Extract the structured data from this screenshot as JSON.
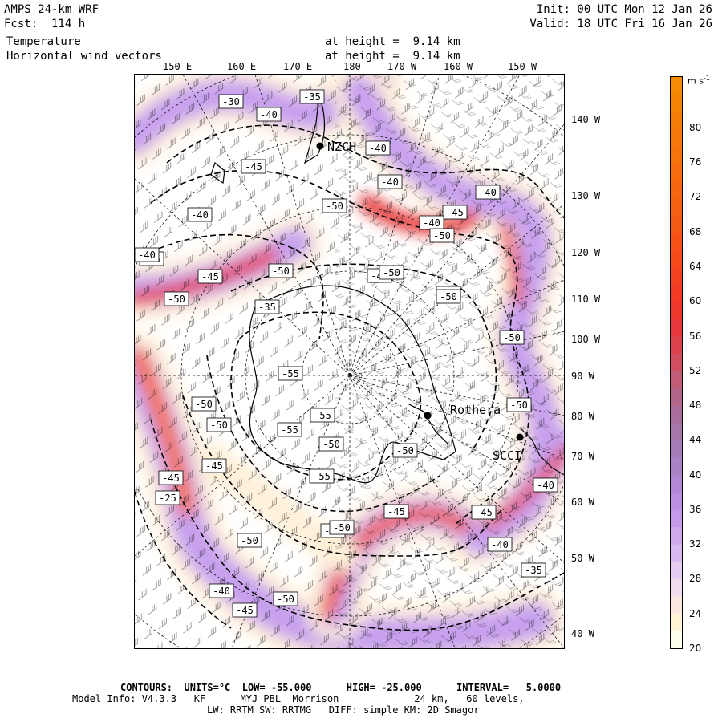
{
  "header": {
    "model": "AMPS 24-km WRF",
    "forecast": "Fcst:  114 h",
    "init": "Init: 00 UTC Mon 12 Jan 26",
    "valid": "Valid: 18 UTC Fri 16 Jan 26",
    "variable1": "Temperature",
    "variable2": "Horizontal wind vectors",
    "height1": "at height =  9.14 km",
    "height2": "at height =  9.14 km"
  },
  "longitude_top": [
    "150 E",
    "160 E",
    "170 E",
    "180",
    "170 W",
    "160 W",
    "150 W"
  ],
  "longitude_right": [
    "140 W",
    "130 W",
    "120 W",
    "110 W",
    "100 W",
    "90 W",
    "80 W",
    "70 W",
    "60 W",
    "50 W",
    "40 W"
  ],
  "stations": [
    {
      "name": "NZCH",
      "label": "NZCH"
    },
    {
      "name": "Rothera",
      "label": "Rothera"
    },
    {
      "name": "SCCI",
      "label": "SCCI"
    }
  ],
  "contour_labels": [
    "-30",
    "-40",
    "-35",
    "-40",
    "-45",
    "-40",
    "-40",
    "-50",
    "-45",
    "-40",
    "-40",
    "-45",
    "-50",
    "-45",
    "-50",
    "-40",
    "-45",
    "-50",
    "-50",
    "-50",
    "-55",
    "-50",
    "-50",
    "-55",
    "-55",
    "-50",
    "-45",
    "-50",
    "-50",
    "-35",
    "-25",
    "-45",
    "-50",
    "-55",
    "-50",
    "-45",
    "-50",
    "-40",
    "-35",
    "-50",
    "-40",
    "-45",
    "-50",
    "-45",
    "-40",
    "-50"
  ],
  "colorbar": {
    "unit": "m s",
    "unit_sup": "-1",
    "ticks": [
      80,
      76,
      72,
      68,
      64,
      60,
      56,
      52,
      48,
      44,
      40,
      36,
      32,
      28,
      24,
      20
    ],
    "min": 20,
    "max": 86,
    "colors": [
      {
        "from": 20,
        "to": 22,
        "color": "#fffff0"
      },
      {
        "from": 22,
        "to": 24,
        "color": "#fff4d6"
      },
      {
        "from": 24,
        "to": 26,
        "color": "#fbe6e0"
      },
      {
        "from": 26,
        "to": 28,
        "color": "#f1dcee"
      },
      {
        "from": 28,
        "to": 30,
        "color": "#e6cbf2"
      },
      {
        "from": 30,
        "to": 32,
        "color": "#dab8f0"
      },
      {
        "from": 32,
        "to": 34,
        "color": "#cfa8ee"
      },
      {
        "from": 34,
        "to": 36,
        "color": "#c59aea"
      },
      {
        "from": 36,
        "to": 38,
        "color": "#bb90e2"
      },
      {
        "from": 38,
        "to": 40,
        "color": "#b288d6"
      },
      {
        "from": 40,
        "to": 42,
        "color": "#aa82c8"
      },
      {
        "from": 42,
        "to": 44,
        "color": "#a67cb8"
      },
      {
        "from": 44,
        "to": 46,
        "color": "#a676aa"
      },
      {
        "from": 46,
        "to": 48,
        "color": "#aa6e9c"
      },
      {
        "from": 48,
        "to": 50,
        "color": "#b4668a"
      },
      {
        "from": 50,
        "to": 52,
        "color": "#c25c76"
      },
      {
        "from": 52,
        "to": 54,
        "color": "#d04e60"
      },
      {
        "from": 54,
        "to": 56,
        "color": "#dc424c"
      },
      {
        "from": 56,
        "to": 58,
        "color": "#e6383a"
      },
      {
        "from": 58,
        "to": 60,
        "color": "#ee362c"
      },
      {
        "from": 60,
        "to": 62,
        "color": "#f33a24"
      },
      {
        "from": 62,
        "to": 64,
        "color": "#f5421e"
      },
      {
        "from": 64,
        "to": 66,
        "color": "#f64a1a"
      },
      {
        "from": 66,
        "to": 68,
        "color": "#f65216"
      },
      {
        "from": 68,
        "to": 70,
        "color": "#f65a14"
      },
      {
        "from": 70,
        "to": 72,
        "color": "#f66012"
      },
      {
        "from": 72,
        "to": 74,
        "color": "#f66610"
      },
      {
        "from": 74,
        "to": 76,
        "color": "#f66c0e"
      },
      {
        "from": 76,
        "to": 78,
        "color": "#f6720c"
      },
      {
        "from": 78,
        "to": 80,
        "color": "#f6780a"
      },
      {
        "from": 80,
        "to": 82,
        "color": "#f67e08"
      },
      {
        "from": 82,
        "to": 84,
        "color": "#f68406"
      },
      {
        "from": 84,
        "to": 86,
        "color": "#f68a04"
      }
    ]
  },
  "footer": {
    "line1": "CONTOURS:  UNITS=°C  LOW= -55.000      HIGH= -25.000      INTERVAL=   5.0000",
    "line2": "Model Info: V4.3.3   KF      MYJ PBL  Morrison             24 km,   60 levels,",
    "line3": "LW: RRTM SW: RRTMG   DIFF: simple KM: 2D Smagor"
  }
}
